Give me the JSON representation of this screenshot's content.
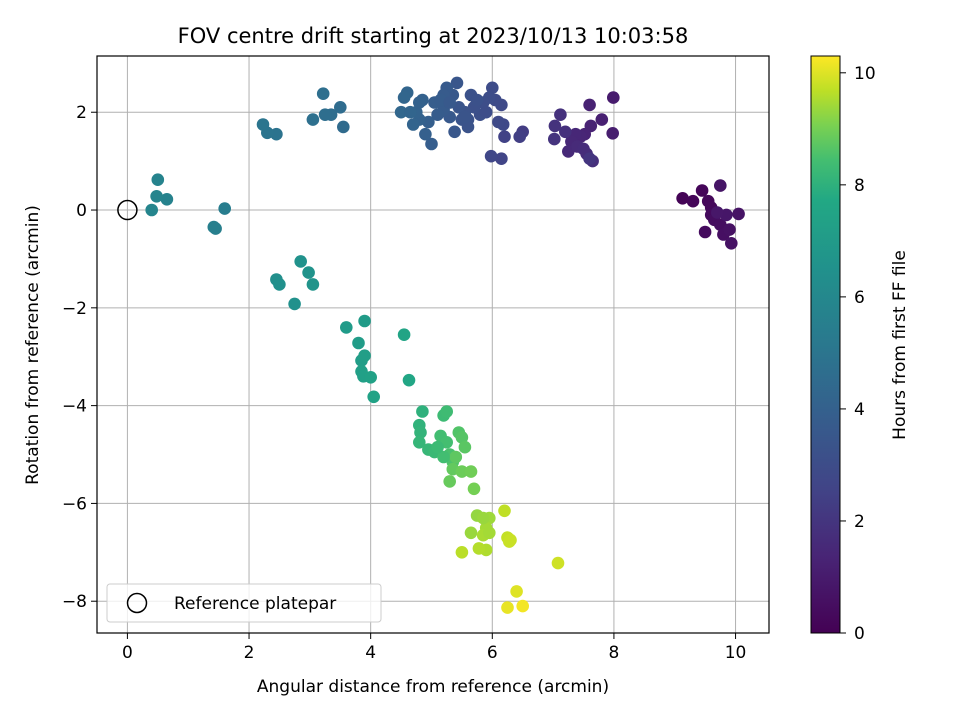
{
  "chart_data": {
    "type": "scatter",
    "title": "FOV centre drift starting at 2023/10/13 10:03:58",
    "xlabel": "Angular distance from reference (arcmin)",
    "ylabel": "Rotation from reference (arcmin)",
    "xlim": [
      -0.5,
      10.55
    ],
    "ylim": [
      -8.65,
      3.15
    ],
    "x_ticks": [
      0,
      2,
      4,
      6,
      8,
      10
    ],
    "y_ticks": [
      -8,
      -6,
      -4,
      -2,
      0,
      2
    ],
    "x_tick_labels": [
      "0",
      "2",
      "4",
      "6",
      "8",
      "10"
    ],
    "y_tick_labels": [
      "−8",
      "−6",
      "−4",
      "−2",
      "0",
      "2"
    ],
    "grid": true,
    "colormap": "viridis",
    "colorbar": {
      "label": "Hours from first FF file",
      "range": [
        0,
        10.3
      ],
      "ticks": [
        0,
        2,
        4,
        6,
        8,
        10
      ],
      "tick_labels": [
        "0",
        "2",
        "4",
        "6",
        "8",
        "10"
      ]
    },
    "legend": {
      "placement": "lower-left",
      "entries": [
        {
          "label": "Reference platepar"
        }
      ]
    },
    "reference_point": {
      "x": 0,
      "y": 0
    },
    "series_columns": [
      "x",
      "y",
      "hours"
    ],
    "points": [
      [
        9.13,
        0.24,
        0.1
      ],
      [
        9.3,
        0.18,
        0.15
      ],
      [
        9.45,
        0.4,
        0.2
      ],
      [
        9.55,
        0.18,
        0.25
      ],
      [
        9.6,
        0.05,
        0.3
      ],
      [
        9.6,
        -0.1,
        0.35
      ],
      [
        9.5,
        -0.45,
        0.4
      ],
      [
        9.65,
        -0.2,
        0.45
      ],
      [
        9.75,
        -0.3,
        0.5
      ],
      [
        9.8,
        -0.5,
        0.55
      ],
      [
        9.9,
        -0.4,
        0.6
      ],
      [
        9.93,
        -0.68,
        0.65
      ],
      [
        10.05,
        -0.08,
        0.7
      ],
      [
        9.75,
        0.5,
        0.75
      ],
      [
        9.85,
        -0.1,
        0.8
      ],
      [
        9.7,
        -0.05,
        0.85
      ],
      [
        7.99,
        2.3,
        1.0
      ],
      [
        7.98,
        1.57,
        1.1
      ],
      [
        7.8,
        1.85,
        1.2
      ],
      [
        7.6,
        2.15,
        1.25
      ],
      [
        7.62,
        1.72,
        1.3
      ],
      [
        7.52,
        1.55,
        1.35
      ],
      [
        7.45,
        1.5,
        1.4
      ],
      [
        7.37,
        1.55,
        1.45
      ],
      [
        7.3,
        1.4,
        1.5
      ],
      [
        7.25,
        1.2,
        1.55
      ],
      [
        7.4,
        1.3,
        1.6
      ],
      [
        7.5,
        1.25,
        1.65
      ],
      [
        7.55,
        1.15,
        1.7
      ],
      [
        7.65,
        1.0,
        1.75
      ],
      [
        7.2,
        1.6,
        1.8
      ],
      [
        7.12,
        1.95,
        1.85
      ],
      [
        7.03,
        1.72,
        1.9
      ],
      [
        7.02,
        1.45,
        1.95
      ],
      [
        7.6,
        1.05,
        2.0
      ],
      [
        6.5,
        1.6,
        2.3
      ],
      [
        6.45,
        1.5,
        2.4
      ],
      [
        6.2,
        1.5,
        2.5
      ],
      [
        6.15,
        1.05,
        2.6
      ],
      [
        5.98,
        1.1,
        2.7
      ],
      [
        6.18,
        1.75,
        2.8
      ],
      [
        6.15,
        2.15,
        2.85
      ],
      [
        6.05,
        2.25,
        2.9
      ],
      [
        6.0,
        2.5,
        2.95
      ],
      [
        5.95,
        2.3,
        3.0
      ],
      [
        5.85,
        2.2,
        3.05
      ],
      [
        5.8,
        1.95,
        3.1
      ],
      [
        5.7,
        2.1,
        3.15
      ],
      [
        5.65,
        2.35,
        3.2
      ],
      [
        5.6,
        1.85,
        3.25
      ],
      [
        5.55,
        2.0,
        3.3
      ],
      [
        5.5,
        1.85,
        3.35
      ],
      [
        5.45,
        2.1,
        3.4
      ],
      [
        5.42,
        2.6,
        3.45
      ],
      [
        5.38,
        1.6,
        3.5
      ],
      [
        5.35,
        2.35,
        3.55
      ],
      [
        5.3,
        1.9,
        3.6
      ],
      [
        5.25,
        2.5,
        3.65
      ],
      [
        5.2,
        2.05,
        3.7
      ],
      [
        5.1,
        1.95,
        3.75
      ],
      [
        5.05,
        2.2,
        3.8
      ],
      [
        5.0,
        1.35,
        3.85
      ],
      [
        4.95,
        1.8,
        3.9
      ],
      [
        4.9,
        1.55,
        3.95
      ],
      [
        4.85,
        2.25,
        4.0
      ],
      [
        4.8,
        1.85,
        4.05
      ],
      [
        4.75,
        2.0,
        4.1
      ],
      [
        4.7,
        1.75,
        4.15
      ],
      [
        4.6,
        2.4,
        4.2
      ],
      [
        4.55,
        2.3,
        4.25
      ],
      [
        4.5,
        2.0,
        4.3
      ],
      [
        5.75,
        2.25,
        3.2
      ],
      [
        5.9,
        2.0,
        3.0
      ],
      [
        6.1,
        1.8,
        2.85
      ],
      [
        5.6,
        1.7,
        3.3
      ],
      [
        5.2,
        2.35,
        3.7
      ],
      [
        4.8,
        2.2,
        4.05
      ],
      [
        4.65,
        2.0,
        4.2
      ],
      [
        5.15,
        2.25,
        3.75
      ],
      [
        5.3,
        2.2,
        3.6
      ],
      [
        5.55,
        1.9,
        3.35
      ],
      [
        3.55,
        1.7,
        4.5
      ],
      [
        3.5,
        2.1,
        4.55
      ],
      [
        3.35,
        1.95,
        4.6
      ],
      [
        3.25,
        1.95,
        4.65
      ],
      [
        3.22,
        2.38,
        4.7
      ],
      [
        3.05,
        1.85,
        4.75
      ],
      [
        2.45,
        1.55,
        4.9
      ],
      [
        2.3,
        1.58,
        4.95
      ],
      [
        2.23,
        1.75,
        5.0
      ],
      [
        1.6,
        0.03,
        5.4
      ],
      [
        1.45,
        -0.38,
        5.5
      ],
      [
        1.42,
        -0.35,
        5.55
      ],
      [
        0.65,
        0.22,
        5.7
      ],
      [
        0.5,
        0.62,
        5.75
      ],
      [
        0.48,
        0.28,
        5.8
      ],
      [
        0.4,
        0.0,
        5.85
      ],
      [
        2.45,
        -1.42,
        6.4
      ],
      [
        2.5,
        -1.52,
        6.45
      ],
      [
        2.75,
        -1.92,
        6.5
      ],
      [
        2.85,
        -1.05,
        6.55
      ],
      [
        2.98,
        -1.28,
        6.6
      ],
      [
        3.05,
        -1.52,
        6.65
      ],
      [
        3.6,
        -2.4,
        7.0
      ],
      [
        3.9,
        -2.27,
        7.05
      ],
      [
        3.8,
        -2.72,
        7.1
      ],
      [
        3.85,
        -3.08,
        7.15
      ],
      [
        3.9,
        -2.98,
        7.2
      ],
      [
        3.85,
        -3.3,
        7.25
      ],
      [
        3.88,
        -3.4,
        7.3
      ],
      [
        4.0,
        -3.42,
        7.35
      ],
      [
        4.05,
        -3.82,
        7.4
      ],
      [
        4.55,
        -2.55,
        7.5
      ],
      [
        4.63,
        -3.48,
        7.6
      ],
      [
        4.85,
        -4.12,
        8.0
      ],
      [
        4.8,
        -4.4,
        8.05
      ],
      [
        4.82,
        -4.55,
        8.1
      ],
      [
        4.8,
        -4.75,
        8.15
      ],
      [
        4.95,
        -4.9,
        8.2
      ],
      [
        5.05,
        -4.95,
        8.25
      ],
      [
        5.2,
        -4.2,
        8.3
      ],
      [
        5.25,
        -4.12,
        8.35
      ],
      [
        5.15,
        -4.62,
        8.4
      ],
      [
        5.25,
        -4.75,
        8.45
      ],
      [
        5.3,
        -5.0,
        8.5
      ],
      [
        5.35,
        -5.15,
        8.55
      ],
      [
        5.45,
        -4.55,
        8.6
      ],
      [
        5.5,
        -4.65,
        8.65
      ],
      [
        5.55,
        -4.85,
        8.7
      ],
      [
        5.4,
        -5.05,
        8.75
      ],
      [
        5.35,
        -5.3,
        8.8
      ],
      [
        5.3,
        -5.55,
        8.85
      ],
      [
        5.5,
        -5.35,
        8.9
      ],
      [
        5.65,
        -5.35,
        8.95
      ],
      [
        5.7,
        -5.7,
        9.0
      ],
      [
        5.2,
        -5.05,
        8.4
      ],
      [
        5.1,
        -4.85,
        8.3
      ],
      [
        5.75,
        -6.25,
        9.3
      ],
      [
        5.65,
        -6.6,
        9.35
      ],
      [
        5.95,
        -6.3,
        9.4
      ],
      [
        5.9,
        -6.5,
        9.45
      ],
      [
        5.85,
        -6.65,
        9.5
      ],
      [
        5.9,
        -6.95,
        9.55
      ],
      [
        5.78,
        -6.92,
        9.6
      ],
      [
        5.5,
        -7.0,
        9.65
      ],
      [
        6.2,
        -6.15,
        9.7
      ],
      [
        6.25,
        -6.7,
        9.75
      ],
      [
        6.28,
        -6.78,
        9.8
      ],
      [
        7.08,
        -7.22,
        9.85
      ],
      [
        6.4,
        -7.8,
        10.0
      ],
      [
        6.25,
        -8.13,
        10.1
      ],
      [
        6.5,
        -8.1,
        10.2
      ],
      [
        5.95,
        -6.6,
        9.45
      ],
      [
        5.85,
        -6.3,
        9.35
      ],
      [
        6.3,
        -6.75,
        9.8
      ]
    ]
  }
}
